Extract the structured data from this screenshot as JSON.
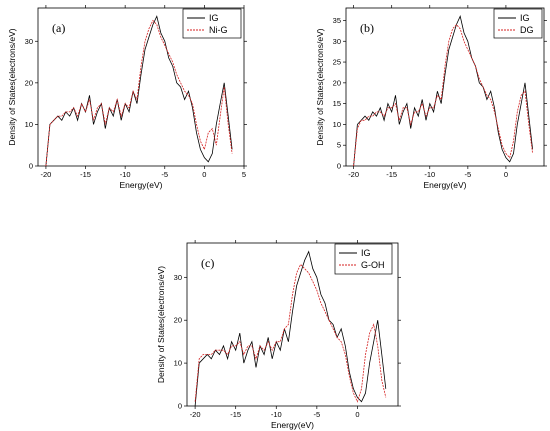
{
  "chart_data": [
    {
      "type": "line",
      "panel_label": "(a)",
      "xlabel": "Energy(eV)",
      "ylabel": "Density of States(electrons/eV)",
      "xlim": [
        -21,
        5
      ],
      "ylim": [
        0,
        38
      ],
      "xticks": [
        -20,
        -15,
        -10,
        -5,
        0,
        5
      ],
      "yticks": [
        0,
        10,
        20,
        30
      ],
      "legend": "top-right",
      "series": [
        {
          "name": "IG",
          "color": "#000000",
          "x": [
            -20,
            -19.5,
            -19,
            -18.5,
            -18,
            -17.5,
            -17,
            -16.5,
            -16,
            -15.5,
            -15,
            -14.5,
            -14,
            -13.5,
            -13,
            -12.5,
            -12,
            -11.5,
            -11,
            -10.5,
            -10,
            -9.5,
            -9,
            -8.5,
            -8,
            -7.5,
            -7,
            -6.5,
            -6,
            -5.5,
            -5,
            -4.5,
            -4,
            -3.5,
            -3,
            -2.5,
            -2,
            -1.5,
            -1,
            -0.5,
            0,
            0.5,
            1,
            1.5,
            2,
            2.5,
            3,
            3.5
          ],
          "y": [
            0,
            10,
            11,
            12,
            11,
            13,
            12,
            14,
            11,
            15,
            13,
            17,
            10,
            13,
            15,
            9,
            14,
            12,
            16,
            11,
            15,
            13,
            18,
            15,
            22,
            28,
            31,
            34,
            36,
            32,
            30,
            26,
            24,
            20,
            19,
            16,
            18,
            14,
            8,
            4,
            2,
            1,
            3,
            10,
            15,
            20,
            12,
            4
          ]
        },
        {
          "name": "Ni-G",
          "color": "#d42020",
          "x": [
            -20,
            -19.5,
            -19,
            -18.5,
            -18,
            -17.5,
            -17,
            -16.5,
            -16,
            -15.5,
            -15,
            -14.5,
            -14,
            -13.5,
            -13,
            -12.5,
            -12,
            -11.5,
            -11,
            -10.5,
            -10,
            -9.5,
            -9,
            -8.5,
            -8,
            -7.5,
            -7,
            -6.5,
            -6,
            -5.5,
            -5,
            -4.5,
            -4,
            -3.5,
            -3,
            -2.5,
            -2,
            -1.5,
            -1,
            -0.5,
            0,
            0.5,
            1,
            1.5,
            2,
            2.5,
            3,
            3.5
          ],
          "y": [
            0,
            10,
            11,
            12,
            12,
            13,
            13,
            14,
            12,
            15,
            13,
            16,
            11,
            14,
            15,
            10,
            14,
            13,
            16,
            12,
            15,
            14,
            18,
            16,
            24,
            30,
            33,
            35,
            34,
            31,
            29,
            27,
            25,
            22,
            20,
            18,
            17,
            15,
            10,
            6,
            4,
            8,
            9,
            5,
            12,
            19,
            10,
            3
          ]
        }
      ]
    },
    {
      "type": "line",
      "panel_label": "(b)",
      "xlabel": "Energy(eV)",
      "ylabel": "Density of States(electrons/eV)",
      "xlim": [
        -21,
        5
      ],
      "ylim": [
        0,
        38
      ],
      "xticks": [
        -20,
        -15,
        -10,
        -5,
        0
      ],
      "yticks": [
        0,
        5,
        10,
        15,
        20,
        25,
        30,
        35
      ],
      "legend": "top-right",
      "series": [
        {
          "name": "IG",
          "color": "#000000",
          "x": [
            -20,
            -19.5,
            -19,
            -18.5,
            -18,
            -17.5,
            -17,
            -16.5,
            -16,
            -15.5,
            -15,
            -14.5,
            -14,
            -13.5,
            -13,
            -12.5,
            -12,
            -11.5,
            -11,
            -10.5,
            -10,
            -9.5,
            -9,
            -8.5,
            -8,
            -7.5,
            -7,
            -6.5,
            -6,
            -5.5,
            -5,
            -4.5,
            -4,
            -3.5,
            -3,
            -2.5,
            -2,
            -1.5,
            -1,
            -0.5,
            0,
            0.5,
            1,
            1.5,
            2,
            2.5,
            3,
            3.5
          ],
          "y": [
            0,
            10,
            11,
            12,
            11,
            13,
            12,
            14,
            11,
            15,
            13,
            17,
            10,
            13,
            15,
            9,
            14,
            12,
            16,
            11,
            15,
            13,
            18,
            15,
            22,
            28,
            31,
            34,
            36,
            32,
            30,
            26,
            24,
            20,
            19,
            16,
            18,
            14,
            8,
            4,
            2,
            1,
            3,
            10,
            15,
            20,
            12,
            4
          ]
        },
        {
          "name": "DG",
          "color": "#d42020",
          "x": [
            -20,
            -19.5,
            -19,
            -18.5,
            -18,
            -17.5,
            -17,
            -16.5,
            -16,
            -15.5,
            -15,
            -14.5,
            -14,
            -13.5,
            -13,
            -12.5,
            -12,
            -11.5,
            -11,
            -10.5,
            -10,
            -9.5,
            -9,
            -8.5,
            -8,
            -7.5,
            -7,
            -6.5,
            -6,
            -5.5,
            -5,
            -4.5,
            -4,
            -3.5,
            -3,
            -2.5,
            -2,
            -1.5,
            -1,
            -0.5,
            0,
            0.5,
            1,
            1.5,
            2,
            2.5,
            3,
            3.5
          ],
          "y": [
            0,
            9,
            11,
            11,
            12,
            12,
            13,
            13,
            12,
            14,
            14,
            15,
            11,
            14,
            14,
            10,
            13,
            13,
            15,
            12,
            14,
            14,
            17,
            16,
            24,
            30,
            33,
            34,
            33,
            30,
            28,
            26,
            24,
            21,
            19,
            17,
            16,
            13,
            9,
            5,
            3,
            2,
            6,
            13,
            17,
            18,
            10,
            3
          ]
        }
      ]
    },
    {
      "type": "line",
      "panel_label": "(c)",
      "xlabel": "Energy(eV)",
      "ylabel": "Density of States(electrons/eV)",
      "xlim": [
        -21,
        5
      ],
      "ylim": [
        0,
        38
      ],
      "xticks": [
        -20,
        -15,
        -10,
        -5,
        0
      ],
      "yticks": [
        0,
        10,
        20,
        30
      ],
      "legend": "top-right",
      "series": [
        {
          "name": "IG",
          "color": "#000000",
          "x": [
            -20,
            -19.5,
            -19,
            -18.5,
            -18,
            -17.5,
            -17,
            -16.5,
            -16,
            -15.5,
            -15,
            -14.5,
            -14,
            -13.5,
            -13,
            -12.5,
            -12,
            -11.5,
            -11,
            -10.5,
            -10,
            -9.5,
            -9,
            -8.5,
            -8,
            -7.5,
            -7,
            -6.5,
            -6,
            -5.5,
            -5,
            -4.5,
            -4,
            -3.5,
            -3,
            -2.5,
            -2,
            -1.5,
            -1,
            -0.5,
            0,
            0.5,
            1,
            1.5,
            2,
            2.5,
            3,
            3.5
          ],
          "y": [
            0,
            10,
            11,
            12,
            11,
            13,
            12,
            14,
            11,
            15,
            13,
            17,
            10,
            13,
            15,
            9,
            14,
            12,
            16,
            11,
            15,
            13,
            18,
            15,
            22,
            28,
            31,
            34,
            36,
            32,
            30,
            26,
            24,
            20,
            19,
            16,
            18,
            14,
            8,
            4,
            2,
            1,
            3,
            10,
            15,
            20,
            12,
            4
          ]
        },
        {
          "name": "G-OH",
          "color": "#d42020",
          "x": [
            -20,
            -19.5,
            -19,
            -18.5,
            -18,
            -17.5,
            -17,
            -16.5,
            -16,
            -15.5,
            -15,
            -14.5,
            -14,
            -13.5,
            -13,
            -12.5,
            -12,
            -11.5,
            -11,
            -10.5,
            -10,
            -9.5,
            -9,
            -8.5,
            -8,
            -7.5,
            -7,
            -6.5,
            -6,
            -5.5,
            -5,
            -4.5,
            -4,
            -3.5,
            -3,
            -2.5,
            -2,
            -1.5,
            -1,
            -0.5,
            0,
            0.5,
            1,
            1.5,
            2,
            2.5,
            3,
            3.5
          ],
          "y": [
            1,
            11,
            12,
            12,
            12,
            13,
            13,
            13,
            12,
            14,
            14,
            15,
            12,
            14,
            14,
            11,
            14,
            13,
            15,
            13,
            15,
            15,
            18,
            19,
            26,
            31,
            33,
            32,
            31,
            29,
            27,
            24,
            22,
            20,
            18,
            16,
            15,
            12,
            7,
            3,
            1,
            4,
            12,
            17,
            19,
            14,
            6,
            2
          ]
        }
      ]
    }
  ]
}
